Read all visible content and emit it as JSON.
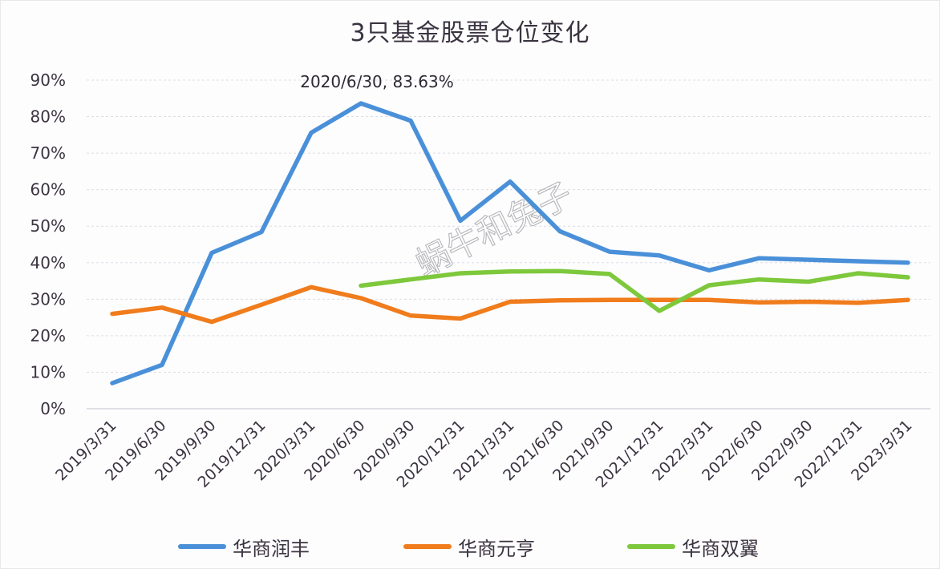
{
  "chart_data": {
    "type": "line",
    "title": "3只基金股票仓位变化",
    "xlabel": "",
    "ylabel": "",
    "ylim": [
      0,
      0.9
    ],
    "y_ticks": [
      "0%",
      "10%",
      "20%",
      "30%",
      "40%",
      "50%",
      "60%",
      "70%",
      "80%",
      "90%"
    ],
    "grid": true,
    "legend_position": "bottom",
    "categories": [
      "2019/3/31",
      "2019/6/30",
      "2019/9/30",
      "2019/12/31",
      "2020/3/31",
      "2020/6/30",
      "2020/9/30",
      "2020/12/31",
      "2021/3/31",
      "2021/6/30",
      "2021/9/30",
      "2021/12/31",
      "2022/3/31",
      "2022/6/30",
      "2022/9/30",
      "2022/12/31",
      "2023/3/31"
    ],
    "series": [
      {
        "name": "华商润丰",
        "color": "#4a90d9",
        "values": [
          0.07,
          0.12,
          0.427,
          0.484,
          0.756,
          0.8363,
          0.789,
          0.515,
          0.622,
          0.486,
          0.43,
          0.42,
          0.379,
          0.412,
          0.408,
          0.404,
          0.4
        ]
      },
      {
        "name": "华商元亨",
        "color": "#f07c1c",
        "values": [
          0.26,
          0.277,
          0.238,
          0.285,
          0.333,
          0.303,
          0.255,
          0.247,
          0.293,
          0.297,
          0.298,
          0.298,
          0.298,
          0.291,
          0.293,
          0.29,
          0.298
        ]
      },
      {
        "name": "华商双翼",
        "color": "#7ec83c",
        "values": [
          null,
          null,
          null,
          null,
          null,
          0.337,
          0.354,
          0.371,
          0.376,
          0.377,
          0.369,
          0.268,
          0.338,
          0.354,
          0.348,
          0.371,
          0.36
        ]
      }
    ],
    "annotations": [
      {
        "text": "2020/6/30, 83.63%",
        "series": "华商润丰",
        "category": "2020/6/30",
        "value": 0.8363
      }
    ],
    "watermark": "蜗牛和兔子"
  }
}
